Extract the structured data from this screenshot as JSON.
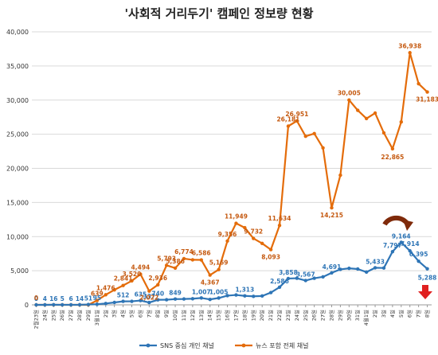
{
  "chart_data": {
    "type": "line",
    "title": "'사회적 거리두기' 캠페인 정보량 현황",
    "xlabel": "",
    "ylabel": "",
    "ylim": [
      0,
      40000
    ],
    "yticks": [
      "0",
      "5,000",
      "10,000",
      "15,000",
      "20,000",
      "25,000",
      "30,000",
      "35,000",
      "40,000"
    ],
    "grid": "horizontal",
    "legend_position": "bottom",
    "x": [
      "2월23일",
      "24일",
      "25일",
      "26일",
      "27일",
      "28일",
      "29일",
      "3월1일",
      "2일",
      "3일",
      "4일",
      "5일",
      "6일",
      "7일",
      "8일",
      "9일",
      "10일",
      "11일",
      "12일",
      "13일",
      "14일",
      "15일",
      "16일",
      "17일",
      "18일",
      "19일",
      "20일",
      "21일",
      "22일",
      "23일",
      "24일",
      "25일",
      "26일",
      "27일",
      "28일",
      "29일",
      "30일",
      "31일",
      "4월1일",
      "2일",
      "3일",
      "4일",
      "5일",
      "6일",
      "7일",
      "8일"
    ],
    "series": [
      {
        "name": "SNS 중심 개인 채널",
        "color": "#2e75b6",
        "values": [
          0,
          4,
          16,
          5,
          6,
          14,
          51,
          95,
          200,
          350,
          512,
          520,
          635,
          337,
          740,
          749,
          849,
          860,
          900,
          1007,
          800,
          1005,
          1350,
          1450,
          1313,
          1250,
          1300,
          1800,
          2586,
          3858,
          3900,
          3567,
          3900,
          4100,
          4691,
          5200,
          5350,
          5250,
          4800,
          5433,
          5400,
          7797,
          9164,
          7914,
          6395,
          5288
        ],
        "labels": [
          "0",
          "4",
          "16",
          "5",
          "6",
          "14",
          "51",
          "95",
          "",
          "",
          "512",
          "",
          "635",
          "337",
          "740",
          "",
          "849",
          "",
          "",
          "1,007",
          "",
          "1,005",
          "",
          "",
          "1,313",
          "",
          "",
          "",
          "2,586",
          "3,858",
          "",
          "3,567",
          "",
          "",
          "4,691",
          "",
          "",
          "",
          "",
          "5,433",
          "",
          "7,797",
          "9,164",
          "7,914",
          "6,395",
          "5,288"
        ]
      },
      {
        "name": "뉴스 포함 전체 채널",
        "color": "#e46c0a",
        "values": [
          0,
          0,
          0,
          0,
          0,
          0,
          0,
          639,
          1476,
          2200,
          2841,
          3520,
          4494,
          2022,
          2936,
          5793,
          5386,
          6774,
          6600,
          6586,
          4367,
          5169,
          9356,
          11949,
          11300,
          9732,
          9000,
          8093,
          11634,
          26181,
          26951,
          24700,
          25100,
          23000,
          14215,
          19000,
          30005,
          28500,
          27300,
          28100,
          25200,
          22865,
          26800,
          36938,
          32400,
          31183
        ],
        "labels": [
          "0",
          "",
          "",
          "",
          "",
          "",
          "",
          "639",
          "1,476",
          "",
          "2,841",
          "3,520",
          "4,494",
          "2,022",
          "2,936",
          "5,793",
          "5,386",
          "6,774",
          "",
          "6,586",
          "4,367",
          "5,169",
          "9,356",
          "11,949",
          "",
          "9,732",
          "",
          "8,093",
          "11,634",
          "26,181",
          "26,951",
          "",
          "",
          "",
          "14,215",
          "",
          "30,005",
          "",
          "",
          "",
          "",
          "22,865",
          "",
          "36,938",
          "",
          "31,183"
        ]
      }
    ]
  }
}
